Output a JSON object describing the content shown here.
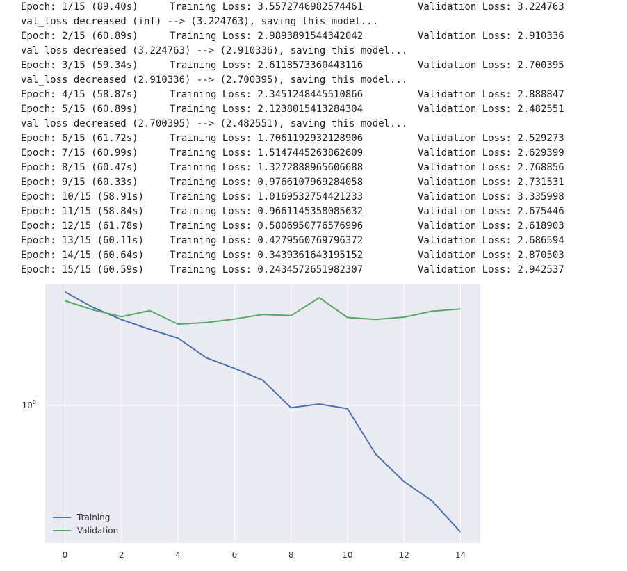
{
  "log_lines": [
    {
      "type": "epoch",
      "epoch": "Epoch: 1/15 (89.40s)",
      "train": "Training Loss: 3.5572746982574461",
      "val": "Validation Loss: 3.224763"
    },
    {
      "type": "msg",
      "text": "val_loss decreased (inf) --> (3.224763), saving this model..."
    },
    {
      "type": "epoch",
      "epoch": "Epoch: 2/15 (60.89s)",
      "train": "Training Loss: 2.9893891544342042",
      "val": "Validation Loss: 2.910336"
    },
    {
      "type": "msg",
      "text": "val_loss decreased (3.224763) --> (2.910336), saving this model..."
    },
    {
      "type": "epoch",
      "epoch": "Epoch: 3/15 (59.34s)",
      "train": "Training Loss: 2.6118573360443116",
      "val": "Validation Loss: 2.700395"
    },
    {
      "type": "msg",
      "text": "val_loss decreased (2.910336) --> (2.700395), saving this model..."
    },
    {
      "type": "epoch",
      "epoch": "Epoch: 4/15 (58.87s)",
      "train": "Training Loss: 2.3451248445510866",
      "val": "Validation Loss: 2.888847"
    },
    {
      "type": "epoch",
      "epoch": "Epoch: 5/15 (60.89s)",
      "train": "Training Loss: 2.1238015413284304",
      "val": "Validation Loss: 2.482551"
    },
    {
      "type": "msg",
      "text": "val_loss decreased (2.700395) --> (2.482551), saving this model..."
    },
    {
      "type": "epoch",
      "epoch": "Epoch: 6/15 (61.72s)",
      "train": "Training Loss: 1.7061192932128906",
      "val": "Validation Loss: 2.529273"
    },
    {
      "type": "epoch",
      "epoch": "Epoch: 7/15 (60.99s)",
      "train": "Training Loss: 1.5147445263862609",
      "val": "Validation Loss: 2.629399"
    },
    {
      "type": "epoch",
      "epoch": "Epoch: 8/15 (60.47s)",
      "train": "Training Loss: 1.3272888965606688",
      "val": "Validation Loss: 2.768856"
    },
    {
      "type": "epoch",
      "epoch": "Epoch: 9/15 (60.33s)",
      "train": "Training Loss: 0.9766107969284058",
      "val": "Validation Loss: 2.731531"
    },
    {
      "type": "epoch",
      "epoch": "Epoch: 10/15 (58.91s)",
      "train": "Training Loss: 1.0169532754421233",
      "val": "Validation Loss: 3.335998"
    },
    {
      "type": "epoch",
      "epoch": "Epoch: 11/15 (58.84s)",
      "train": "Training Loss: 0.9661145358085632",
      "val": "Validation Loss: 2.675446"
    },
    {
      "type": "epoch",
      "epoch": "Epoch: 12/15 (61.78s)",
      "train": "Training Loss: 0.5806950776576996",
      "val": "Validation Loss: 2.618903"
    },
    {
      "type": "epoch",
      "epoch": "Epoch: 13/15 (60.11s)",
      "train": "Training Loss: 0.4279560769796372",
      "val": "Validation Loss: 2.686594"
    },
    {
      "type": "epoch",
      "epoch": "Epoch: 14/15 (60.64s)",
      "train": "Training Loss: 0.3439361643195152",
      "val": "Validation Loss: 2.870503"
    },
    {
      "type": "epoch",
      "epoch": "Epoch: 15/15 (60.59s)",
      "train": "Training Loss: 0.2434572651982307",
      "val": "Validation Loss: 2.942537"
    }
  ],
  "chart_data": {
    "type": "line",
    "title": "",
    "xlabel": "",
    "ylabel": "",
    "yscale": "log",
    "grid": true,
    "legend_position": "lower-left",
    "x": [
      0,
      1,
      2,
      3,
      4,
      5,
      6,
      7,
      8,
      9,
      10,
      11,
      12,
      13,
      14
    ],
    "xticks": [
      0,
      2,
      4,
      6,
      8,
      10,
      12,
      14
    ],
    "xtick_labels": [
      "0",
      "2",
      "4",
      "6",
      "8",
      "10",
      "12",
      "14"
    ],
    "ytick_label_base": "10",
    "ytick_label_exp": "0",
    "xlim": [
      -0.7,
      14.7
    ],
    "ylim": [
      0.215,
      3.9
    ],
    "colors": {
      "Training": "#4c72b0",
      "Validation": "#55a868",
      "plot_bg": "#eaeaf2",
      "grid": "#ffffff"
    },
    "series": [
      {
        "name": "Training",
        "values": [
          3.557274698257446,
          2.989389154434204,
          2.6118573360443116,
          2.3451248445510866,
          2.1238015413284304,
          1.7061192932128906,
          1.514744526386261,
          1.3272888965606688,
          0.9766107969284058,
          1.0169532754421233,
          0.9661145358085632,
          0.5806950776576996,
          0.4279560769796372,
          0.3439361643195152,
          0.2434572651982307
        ]
      },
      {
        "name": "Validation",
        "values": [
          3.224763,
          2.910336,
          2.700395,
          2.888847,
          2.482551,
          2.529273,
          2.629399,
          2.768856,
          2.731531,
          3.335998,
          2.675446,
          2.618903,
          2.686594,
          2.870503,
          2.942537
        ]
      }
    ]
  }
}
